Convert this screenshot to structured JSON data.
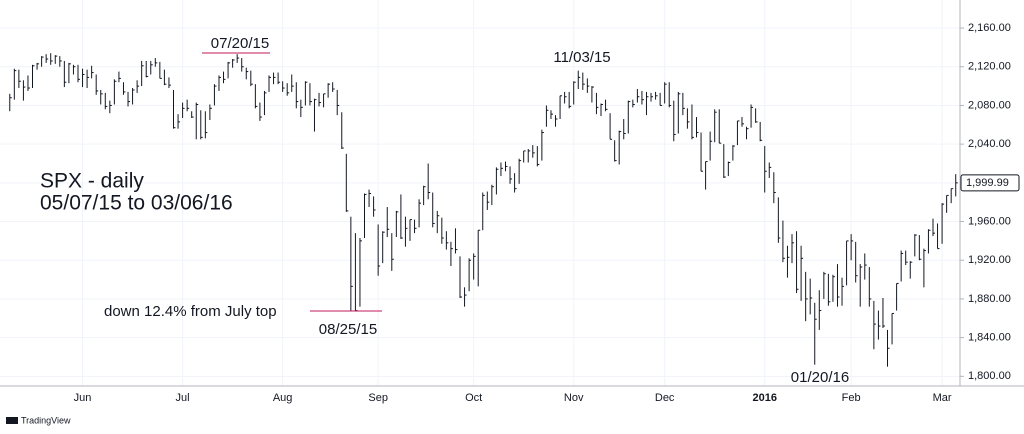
{
  "chart_data": {
    "type": "hlc",
    "title": "SPX - daily",
    "subtitle": "05/07/15 to 03/06/16",
    "annotations": [
      "07/20/15",
      "11/03/15",
      "down 12.4% from July top",
      "08/25/15",
      "01/20/16"
    ],
    "last_value_label": "1,999.99",
    "footer": "TradingView",
    "color": "#131722",
    "grid": true,
    "categories": [
      null,
      null,
      null,
      null,
      null,
      null,
      null,
      null,
      null,
      null,
      null,
      null,
      null,
      null,
      null,
      null,
      "Jun",
      null,
      null,
      null,
      null,
      null,
      null,
      null,
      null,
      null,
      null,
      null,
      null,
      null,
      null,
      null,
      null,
      null,
      null,
      null,
      null,
      null,
      "Jul",
      null,
      null,
      null,
      null,
      null,
      null,
      null,
      null,
      null,
      null,
      null,
      null,
      null,
      null,
      null,
      null,
      null,
      null,
      null,
      null,
      null,
      "Aug",
      null,
      null,
      null,
      null,
      null,
      null,
      null,
      null,
      null,
      null,
      null,
      null,
      null,
      null,
      null,
      null,
      null,
      null,
      null,
      null,
      "Sep",
      null,
      null,
      null,
      null,
      null,
      null,
      null,
      null,
      null,
      null,
      null,
      null,
      null,
      null,
      null,
      null,
      null,
      null,
      null,
      null,
      "Oct",
      null,
      null,
      null,
      null,
      null,
      null,
      null,
      null,
      null,
      null,
      null,
      null,
      null,
      null,
      null,
      null,
      null,
      null,
      null,
      null,
      null,
      "Nov",
      null,
      null,
      null,
      null,
      null,
      null,
      null,
      null,
      null,
      null,
      null,
      null,
      null,
      null,
      null,
      null,
      null,
      null,
      null,
      "Dec",
      null,
      null,
      null,
      null,
      null,
      null,
      null,
      null,
      null,
      null,
      null,
      null,
      null,
      null,
      null,
      null,
      null,
      null,
      null,
      null,
      null,
      "2016",
      null,
      null,
      null,
      null,
      null,
      null,
      null,
      null,
      null,
      null,
      null,
      null,
      null,
      null,
      null,
      null,
      null,
      null,
      "Feb",
      null,
      null,
      null,
      null,
      null,
      null,
      null,
      null,
      null,
      null,
      null,
      null,
      null,
      null,
      null,
      null,
      null,
      null,
      null,
      "Mar",
      null,
      null,
      null
    ],
    "high": [
      2092,
      2118,
      2117,
      2106,
      2111,
      2122,
      2124,
      2131,
      2133,
      2134,
      2132,
      2131,
      2126,
      2124,
      2122,
      2122,
      2118,
      2117,
      2121,
      2112,
      2096,
      2093,
      2085,
      2107,
      2115,
      2104,
      2094,
      2098,
      2106,
      2126,
      2126,
      2126,
      2129,
      2125,
      2117,
      2109,
      2096,
      2071,
      2083,
      2086,
      2074,
      2083,
      2075,
      2074,
      2081,
      2102,
      2111,
      2115,
      2125,
      2128,
      2133,
      2129,
      2119,
      2116,
      2102,
      2083,
      2095,
      2111,
      2114,
      2114,
      2105,
      2103,
      2112,
      2104,
      2086,
      2105,
      2103,
      2087,
      2093,
      2092,
      2103,
      2104,
      2096,
      2073,
      2030,
      1965,
      1948,
      1943,
      1989,
      1993,
      1986,
      1957,
      1950,
      1975,
      1948,
      1971,
      1988,
      1965,
      1962,
      1962,
      1983,
      1997,
      2020,
      1990,
      1971,
      1964,
      1950,
      1939,
      1953,
      1924,
      1892,
      1922,
      1927,
      1951,
      1990,
      1991,
      1998,
      2016,
      2021,
      2022,
      2017,
      2010,
      2025,
      2033,
      2035,
      2039,
      2038,
      2055,
      2080,
      2075,
      2070,
      2090,
      2094,
      2094,
      2105,
      2116,
      2114,
      2108,
      2100,
      2093,
      2082,
      2086,
      2072,
      2044,
      2054,
      2066,
      2085,
      2086,
      2097,
      2095,
      2094,
      2093,
      2094,
      2093,
      2104,
      2104,
      2085,
      2094,
      2093,
      2077,
      2081,
      2068,
      2052,
      2022,
      2053,
      2076,
      2076,
      2040,
      2022,
      2039,
      2064,
      2068,
      2058,
      2081,
      2077,
      2063,
      2038,
      2021,
      2011,
      1985,
      1961,
      1935,
      1947,
      1950,
      1935,
      1908,
      1901,
      1876,
      1889,
      1908,
      1906,
      1905,
      1916,
      1902,
      1940,
      1947,
      1939,
      1916,
      1927,
      1913,
      1878,
      1868,
      1881,
      1848,
      1865,
      1896,
      1930,
      1930,
      1919,
      1947,
      1946,
      1932,
      1952,
      1963,
      1958,
      1979,
      1987,
      1994,
      2009
    ],
    "low": [
      2074,
      2086,
      2098,
      2085,
      2095,
      2098,
      2117,
      2120,
      2124,
      2122,
      2123,
      2120,
      2099,
      2103,
      2112,
      2104,
      2099,
      2098,
      2108,
      2091,
      2081,
      2076,
      2072,
      2081,
      2104,
      2091,
      2079,
      2081,
      2093,
      2100,
      2109,
      2112,
      2120,
      2108,
      2101,
      2098,
      2056,
      2056,
      2067,
      2074,
      2067,
      2045,
      2045,
      2046,
      2065,
      2080,
      2095,
      2103,
      2108,
      2119,
      2124,
      2115,
      2107,
      2100,
      2077,
      2064,
      2070,
      2094,
      2102,
      2102,
      2094,
      2090,
      2094,
      2077,
      2068,
      2080,
      2080,
      2053,
      2079,
      2078,
      2088,
      2094,
      2070,
      2035,
      1970,
      1867,
      1867,
      1872,
      1943,
      1975,
      1965,
      1904,
      1917,
      1944,
      1909,
      1944,
      1942,
      1934,
      1940,
      1948,
      1954,
      1977,
      1983,
      1954,
      1948,
      1937,
      1931,
      1914,
      1927,
      1881,
      1872,
      1888,
      1900,
      1893,
      1951,
      1972,
      1977,
      1988,
      2007,
      2012,
      1999,
      1990,
      1999,
      2021,
      2021,
      2026,
      2017,
      2023,
      2058,
      2066,
      2058,
      2066,
      2082,
      2077,
      2081,
      2097,
      2096,
      2093,
      2083,
      2071,
      2069,
      2074,
      2045,
      2022,
      2019,
      2045,
      2051,
      2078,
      2083,
      2081,
      2070,
      2084,
      2086,
      2080,
      2082,
      2078,
      2043,
      2051,
      2070,
      2056,
      2045,
      2047,
      2012,
      1993,
      2023,
      2042,
      2041,
      2005,
      2007,
      2023,
      2039,
      2058,
      2045,
      2057,
      2062,
      2043,
      1990,
      2005,
      1979,
      1938,
      1918,
      1902,
      1917,
      1886,
      1878,
      1857,
      1864,
      1812,
      1848,
      1880,
      1873,
      1877,
      1872,
      1873,
      1894,
      1920,
      1897,
      1872,
      1900,
      1872,
      1828,
      1838,
      1850,
      1810,
      1833,
      1868,
      1898,
      1915,
      1901,
      1924,
      1920,
      1892,
      1927,
      1945,
      1932,
      1937,
      1969,
      1979,
      1986
    ],
    "close": [
      2088,
      2116,
      2105,
      2099,
      2098,
      2121,
      2123,
      2130,
      2128,
      2126,
      2131,
      2126,
      2104,
      2123,
      2120,
      2107,
      2112,
      2109,
      2114,
      2095,
      2092,
      2079,
      2080,
      2105,
      2108,
      2094,
      2084,
      2096,
      2100,
      2121,
      2110,
      2122,
      2124,
      2108,
      2102,
      2101,
      2057,
      2063,
      2077,
      2077,
      2068,
      2081,
      2047,
      2052,
      2077,
      2100,
      2109,
      2107,
      2124,
      2127,
      2129,
      2120,
      2115,
      2102,
      2079,
      2068,
      2093,
      2109,
      2109,
      2104,
      2098,
      2093,
      2100,
      2084,
      2078,
      2104,
      2084,
      2086,
      2083,
      2092,
      2102,
      2097,
      2080,
      2036,
      1971,
      1893,
      1868,
      1940,
      1988,
      1989,
      1972,
      1914,
      1949,
      1952,
      1921,
      1970,
      1943,
      1953,
      1962,
      1953,
      1979,
      1996,
      1990,
      1958,
      1966,
      1943,
      1938,
      1932,
      1931,
      1882,
      1884,
      1920,
      1924,
      1951,
      1987,
      1980,
      1996,
      2014,
      2015,
      2017,
      2004,
      1994,
      2023,
      2033,
      2033,
      2031,
      2019,
      2052,
      2075,
      2071,
      2066,
      2090,
      2089,
      2079,
      2104,
      2109,
      2102,
      2100,
      2099,
      2078,
      2081,
      2076,
      2045,
      2023,
      2053,
      2051,
      2084,
      2081,
      2089,
      2086,
      2089,
      2089,
      2090,
      2080,
      2102,
      2080,
      2050,
      2092,
      2077,
      2063,
      2047,
      2052,
      2012,
      2022,
      2043,
      2073,
      2041,
      2006,
      2021,
      2038,
      2064,
      2061,
      2056,
      2078,
      2063,
      2044,
      2012,
      2016,
      1990,
      1943,
      1922,
      1923,
      1938,
      1890,
      1922,
      1880,
      1881,
      1859,
      1868,
      1906,
      1877,
      1903,
      1882,
      1893,
      1940,
      1940,
      1904,
      1913,
      1915,
      1880,
      1854,
      1852,
      1852,
      1829,
      1865,
      1896,
      1927,
      1918,
      1918,
      1946,
      1921,
      1930,
      1951,
      1948,
      1932,
      1978,
      1987,
      1994,
      1999.99
    ],
    "ylim": [
      1790,
      2189
    ],
    "yticks": [
      {
        "value": 1800,
        "label": "1,800.00"
      },
      {
        "value": 1840,
        "label": "1,840.00"
      },
      {
        "value": 1880,
        "label": "1,880.00"
      },
      {
        "value": 1920,
        "label": "1,920.00"
      },
      {
        "value": 1960,
        "label": "1,960.00"
      },
      {
        "value": 2000,
        "label": "2,000.00"
      },
      {
        "value": 2040,
        "label": "2,040.00"
      },
      {
        "value": 2080,
        "label": "2,080.00"
      },
      {
        "value": 2120,
        "label": "2,120.00"
      },
      {
        "value": 2160,
        "label": "2,160.00"
      }
    ]
  }
}
